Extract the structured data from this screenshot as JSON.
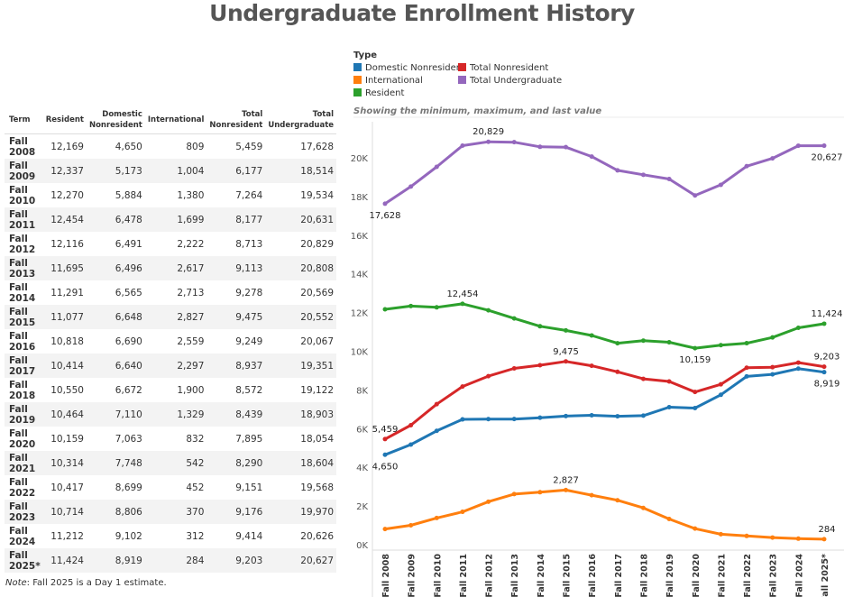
{
  "title": "Undergraduate Enrollment History",
  "table": {
    "headers": [
      "Term",
      "Resident",
      "Domestic Nonresident",
      "International",
      "Total Nonresident",
      "Total Undergraduate"
    ],
    "rows": [
      [
        "Fall 2008",
        "12,169",
        "4,650",
        "809",
        "5,459",
        "17,628"
      ],
      [
        "Fall 2009",
        "12,337",
        "5,173",
        "1,004",
        "6,177",
        "18,514"
      ],
      [
        "Fall 2010",
        "12,270",
        "5,884",
        "1,380",
        "7,264",
        "19,534"
      ],
      [
        "Fall 2011",
        "12,454",
        "6,478",
        "1,699",
        "8,177",
        "20,631"
      ],
      [
        "Fall 2012",
        "12,116",
        "6,491",
        "2,222",
        "8,713",
        "20,829"
      ],
      [
        "Fall 2013",
        "11,695",
        "6,496",
        "2,617",
        "9,113",
        "20,808"
      ],
      [
        "Fall 2014",
        "11,291",
        "6,565",
        "2,713",
        "9,278",
        "20,569"
      ],
      [
        "Fall 2015",
        "11,077",
        "6,648",
        "2,827",
        "9,475",
        "20,552"
      ],
      [
        "Fall 2016",
        "10,818",
        "6,690",
        "2,559",
        "9,249",
        "20,067"
      ],
      [
        "Fall 2017",
        "10,414",
        "6,640",
        "2,297",
        "8,937",
        "19,351"
      ],
      [
        "Fall 2018",
        "10,550",
        "6,672",
        "1,900",
        "8,572",
        "19,122"
      ],
      [
        "Fall 2019",
        "10,464",
        "7,110",
        "1,329",
        "8,439",
        "18,903"
      ],
      [
        "Fall 2020",
        "10,159",
        "7,063",
        "832",
        "7,895",
        "18,054"
      ],
      [
        "Fall 2021",
        "10,314",
        "7,748",
        "542",
        "8,290",
        "18,604"
      ],
      [
        "Fall 2022",
        "10,417",
        "8,699",
        "452",
        "9,151",
        "19,568"
      ],
      [
        "Fall 2023",
        "10,714",
        "8,806",
        "370",
        "9,176",
        "19,970"
      ],
      [
        "Fall 2024",
        "11,212",
        "9,102",
        "312",
        "9,414",
        "20,626"
      ],
      [
        "Fall 2025*",
        "11,424",
        "8,919",
        "284",
        "9,203",
        "20,627"
      ]
    ]
  },
  "note_label": "Note",
  "note_text": ": Fall 2025 is a Day 1 estimate.",
  "chart_data": {
    "type": "line",
    "legend_title": "Type",
    "legend_placement": "top-left",
    "subtitle": "Showing the minimum, maximum, and last value",
    "categories": [
      "Fall 2008",
      "Fall 2009",
      "Fall 2010",
      "Fall 2011",
      "Fall 2012",
      "Fall 2013",
      "Fall 2014",
      "Fall 2015",
      "Fall 2016",
      "Fall 2017",
      "Fall 2018",
      "Fall 2019",
      "Fall 2020",
      "Fall 2021",
      "Fall 2022",
      "Fall 2023",
      "Fall 2024",
      "Fall 2025*"
    ],
    "ylim": [
      0,
      21000
    ],
    "yticks": [
      0,
      2000,
      4000,
      6000,
      8000,
      10000,
      12000,
      14000,
      16000,
      18000,
      20000
    ],
    "ytick_labels": [
      "0K",
      "2K",
      "4K",
      "6K",
      "8K",
      "10K",
      "12K",
      "14K",
      "16K",
      "18K",
      "20K"
    ],
    "grid": false,
    "series": [
      {
        "name": "Domestic Nonresident",
        "color": "#1f77b4",
        "values": [
          4650,
          5173,
          5884,
          6478,
          6491,
          6496,
          6565,
          6648,
          6690,
          6640,
          6672,
          7110,
          7063,
          7748,
          8699,
          8806,
          9102,
          8919
        ],
        "labels": [
          {
            "i": 0,
            "text": "4,650",
            "pos": "below"
          },
          {
            "i": 17,
            "text": "8,919",
            "pos": "below"
          }
        ]
      },
      {
        "name": "International",
        "color": "#ff7f0e",
        "values": [
          809,
          1004,
          1380,
          1699,
          2222,
          2617,
          2713,
          2827,
          2559,
          2297,
          1900,
          1329,
          832,
          542,
          452,
          370,
          312,
          284
        ],
        "labels": [
          {
            "i": 7,
            "text": "2,827",
            "pos": "above"
          },
          {
            "i": 17,
            "text": "284",
            "pos": "above"
          }
        ]
      },
      {
        "name": "Resident",
        "color": "#2ca02c",
        "values": [
          12169,
          12337,
          12270,
          12454,
          12116,
          11695,
          11291,
          11077,
          10818,
          10414,
          10550,
          10464,
          10159,
          10314,
          10417,
          10714,
          11212,
          11424
        ],
        "labels": [
          {
            "i": 3,
            "text": "12,454",
            "pos": "above"
          },
          {
            "i": 12,
            "text": "10,159",
            "pos": "below"
          },
          {
            "i": 17,
            "text": "11,424",
            "pos": "above"
          }
        ]
      },
      {
        "name": "Total Nonresident",
        "color": "#d62728",
        "values": [
          5459,
          6177,
          7264,
          8177,
          8713,
          9113,
          9278,
          9475,
          9249,
          8937,
          8572,
          8439,
          7895,
          8290,
          9151,
          9176,
          9414,
          9203
        ],
        "labels": [
          {
            "i": 0,
            "text": "5,459",
            "pos": "above"
          },
          {
            "i": 7,
            "text": "9,475",
            "pos": "above"
          },
          {
            "i": 17,
            "text": "9,203",
            "pos": "above"
          }
        ]
      },
      {
        "name": "Total Undergraduate",
        "color": "#9467bd",
        "values": [
          17628,
          18514,
          19534,
          20631,
          20829,
          20808,
          20569,
          20552,
          20067,
          19351,
          19122,
          18903,
          18054,
          18604,
          19568,
          19970,
          20626,
          20627
        ],
        "labels": [
          {
            "i": 0,
            "text": "17,628",
            "pos": "below"
          },
          {
            "i": 4,
            "text": "20,829",
            "pos": "above"
          },
          {
            "i": 17,
            "text": "20,627",
            "pos": "below"
          }
        ]
      }
    ]
  }
}
